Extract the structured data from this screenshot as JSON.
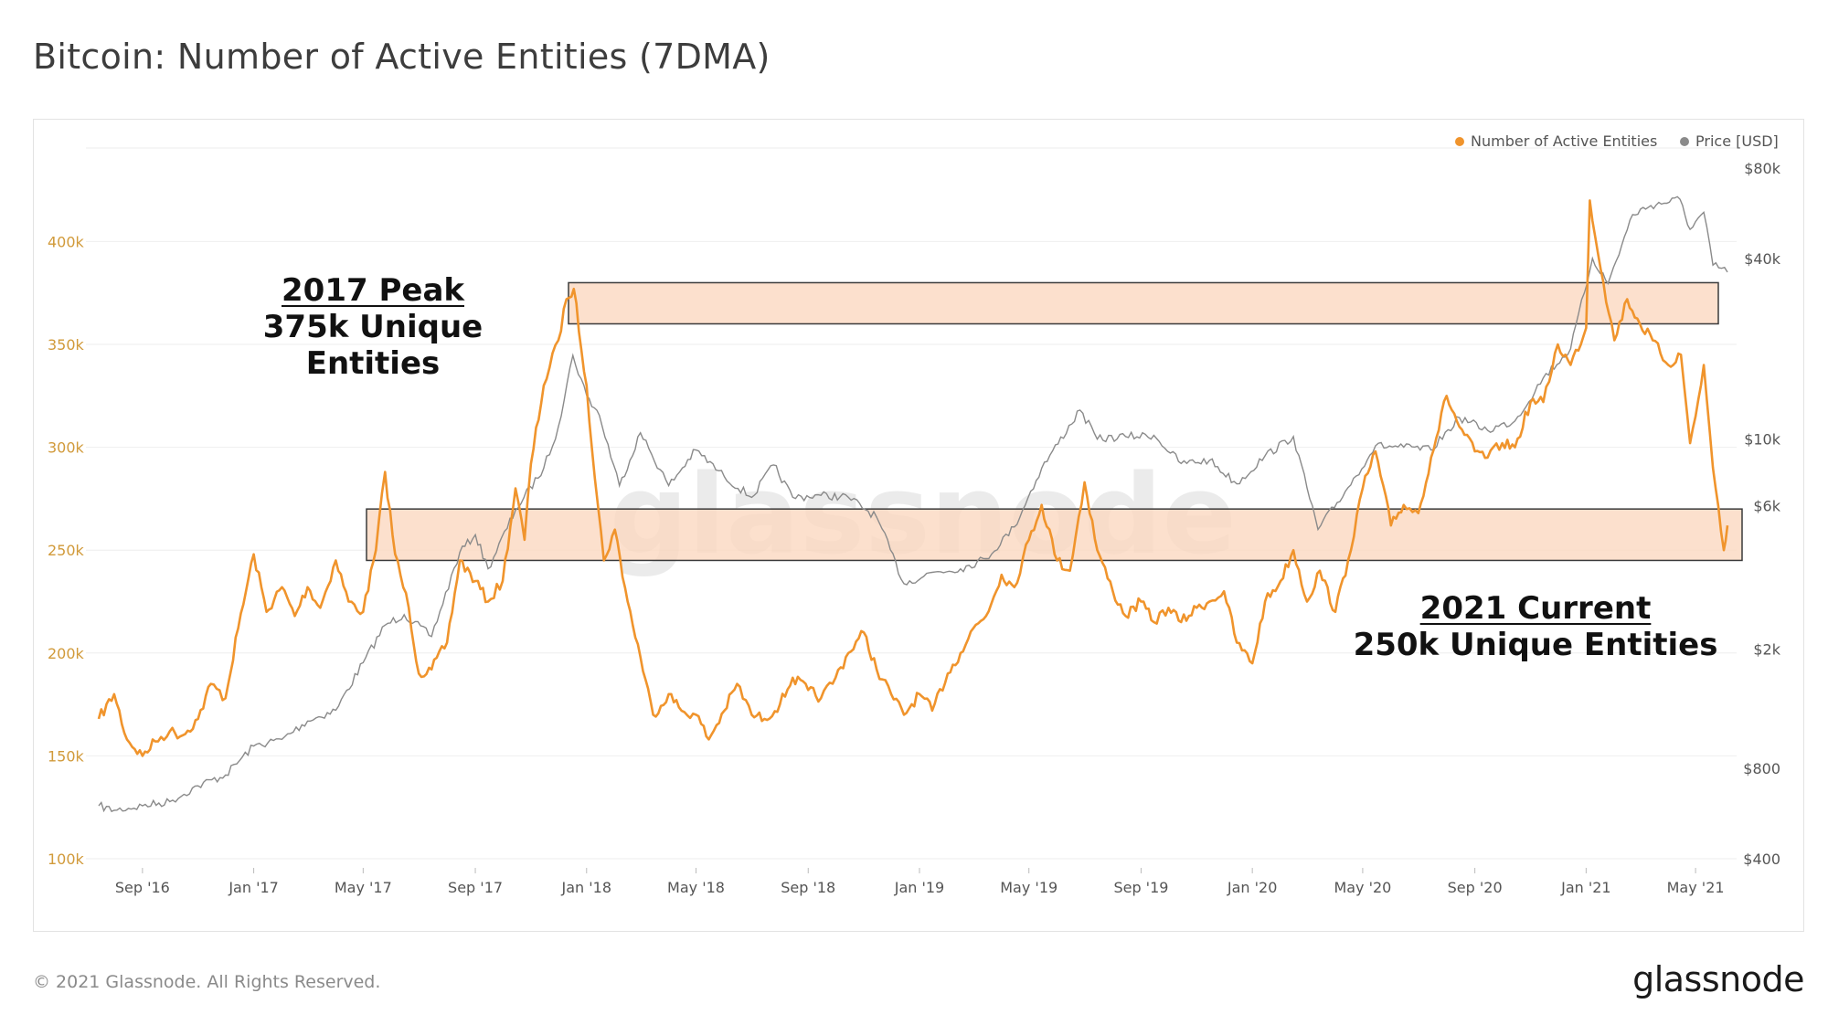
{
  "title": "Bitcoin: Number of Active Entities (7DMA)",
  "footer": {
    "copyright": "© 2021 Glassnode. All Rights Reserved.",
    "logo_text": "glassnode"
  },
  "watermark": "glassnode",
  "colors": {
    "entities": "#f0942c",
    "price": "#8a8a8a",
    "band_fill": "#fbd8c0",
    "band_stroke": "#3a3a3a",
    "grid": "#eeeeee",
    "left_axis_text": "#d19a3a"
  },
  "annotations": {
    "peak_2017_line1": "2017 Peak",
    "peak_2017_line2": "375k Unique Entities",
    "current_2021_line1": "2021 Current",
    "current_2021_line2": "250k Unique Entities"
  },
  "chart_data": {
    "type": "line",
    "title": "Bitcoin: Number of Active Entities (7DMA)",
    "legend": {
      "placement": "top-right",
      "entries": [
        "Number of Active Entities",
        "Price [USD]"
      ]
    },
    "grid": true,
    "x_ticks": [
      "Sep '16",
      "Jan '17",
      "May '17",
      "Sep '17",
      "Jan '18",
      "May '18",
      "Sep '18",
      "Jan '19",
      "May '19",
      "Sep '19",
      "Jan '20",
      "May '20",
      "Sep '20",
      "Jan '21",
      "May '21"
    ],
    "x_range": [
      "2016-07",
      "2021-06"
    ],
    "y_left": {
      "ticks": [
        "100k",
        "150k",
        "200k",
        "250k",
        "300k",
        "350k",
        "400k"
      ],
      "ylim": [
        100000,
        440000
      ]
    },
    "y_right": {
      "scale": "log",
      "ticks": [
        "$400",
        "$800",
        "$2k",
        "$6k",
        "$10k",
        "$40k",
        "$80k"
      ],
      "tick_values": [
        400,
        800,
        2000,
        6000,
        10000,
        40000,
        80000
      ]
    },
    "bands": [
      {
        "name": "2017 peak band",
        "y_range": [
          360000,
          380000
        ],
        "x_range": [
          "2017-12",
          "2021-05"
        ]
      },
      {
        "name": "2021 current band",
        "y_range": [
          245000,
          270000
        ],
        "x_range": [
          "2017-05",
          "2021-06"
        ]
      }
    ],
    "series": [
      {
        "name": "Number of Active Entities",
        "axis": "left",
        "points": [
          [
            "2016-07-15",
            168000
          ],
          [
            "2016-08-01",
            180000
          ],
          [
            "2016-08-15",
            158000
          ],
          [
            "2016-09-01",
            150000
          ],
          [
            "2016-09-15",
            157000
          ],
          [
            "2016-10-01",
            162000
          ],
          [
            "2016-10-15",
            160000
          ],
          [
            "2016-11-01",
            168000
          ],
          [
            "2016-11-15",
            185000
          ],
          [
            "2016-12-01",
            178000
          ],
          [
            "2016-12-15",
            212000
          ],
          [
            "2017-01-01",
            248000
          ],
          [
            "2017-01-15",
            220000
          ],
          [
            "2017-02-01",
            232000
          ],
          [
            "2017-02-15",
            218000
          ],
          [
            "2017-03-01",
            232000
          ],
          [
            "2017-03-15",
            222000
          ],
          [
            "2017-04-01",
            245000
          ],
          [
            "2017-04-15",
            225000
          ],
          [
            "2017-05-01",
            220000
          ],
          [
            "2017-05-15",
            250000
          ],
          [
            "2017-05-25",
            288000
          ],
          [
            "2017-06-05",
            248000
          ],
          [
            "2017-06-20",
            222000
          ],
          [
            "2017-07-01",
            190000
          ],
          [
            "2017-07-15",
            192000
          ],
          [
            "2017-08-01",
            205000
          ],
          [
            "2017-08-15",
            245000
          ],
          [
            "2017-09-01",
            235000
          ],
          [
            "2017-09-15",
            225000
          ],
          [
            "2017-10-01",
            235000
          ],
          [
            "2017-10-15",
            280000
          ],
          [
            "2017-10-25",
            255000
          ],
          [
            "2017-11-01",
            292000
          ],
          [
            "2017-11-15",
            330000
          ],
          [
            "2017-12-01",
            352000
          ],
          [
            "2017-12-10",
            372000
          ],
          [
            "2017-12-18",
            377000
          ],
          [
            "2018-01-01",
            330000
          ],
          [
            "2018-01-10",
            285000
          ],
          [
            "2018-01-20",
            245000
          ],
          [
            "2018-02-01",
            260000
          ],
          [
            "2018-02-15",
            225000
          ],
          [
            "2018-03-01",
            198000
          ],
          [
            "2018-03-15",
            170000
          ],
          [
            "2018-04-01",
            180000
          ],
          [
            "2018-04-15",
            172000
          ],
          [
            "2018-05-01",
            170000
          ],
          [
            "2018-05-15",
            158000
          ],
          [
            "2018-06-01",
            172000
          ],
          [
            "2018-06-15",
            185000
          ],
          [
            "2018-07-01",
            170000
          ],
          [
            "2018-07-15",
            168000
          ],
          [
            "2018-08-01",
            175000
          ],
          [
            "2018-08-15",
            188000
          ],
          [
            "2018-09-01",
            182000
          ],
          [
            "2018-09-15",
            178000
          ],
          [
            "2018-10-01",
            188000
          ],
          [
            "2018-10-15",
            200000
          ],
          [
            "2018-11-01",
            210000
          ],
          [
            "2018-11-15",
            192000
          ],
          [
            "2018-12-01",
            180000
          ],
          [
            "2018-12-15",
            170000
          ],
          [
            "2019-01-01",
            180000
          ],
          [
            "2019-01-15",
            172000
          ],
          [
            "2019-02-01",
            190000
          ],
          [
            "2019-02-15",
            200000
          ],
          [
            "2019-03-01",
            212000
          ],
          [
            "2019-03-15",
            218000
          ],
          [
            "2019-04-01",
            238000
          ],
          [
            "2019-04-15",
            232000
          ],
          [
            "2019-05-01",
            255000
          ],
          [
            "2019-05-15",
            272000
          ],
          [
            "2019-06-01",
            245000
          ],
          [
            "2019-06-15",
            240000
          ],
          [
            "2019-07-01",
            283000
          ],
          [
            "2019-07-15",
            250000
          ],
          [
            "2019-08-01",
            230000
          ],
          [
            "2019-08-15",
            218000
          ],
          [
            "2019-09-01",
            225000
          ],
          [
            "2019-09-15",
            215000
          ],
          [
            "2019-10-01",
            222000
          ],
          [
            "2019-10-15",
            215000
          ],
          [
            "2019-11-01",
            222000
          ],
          [
            "2019-11-15",
            225000
          ],
          [
            "2019-12-01",
            230000
          ],
          [
            "2019-12-15",
            205000
          ],
          [
            "2020-01-01",
            195000
          ],
          [
            "2020-01-15",
            225000
          ],
          [
            "2020-02-01",
            235000
          ],
          [
            "2020-02-15",
            250000
          ],
          [
            "2020-03-01",
            225000
          ],
          [
            "2020-03-15",
            240000
          ],
          [
            "2020-04-01",
            220000
          ],
          [
            "2020-04-15",
            245000
          ],
          [
            "2020-05-01",
            280000
          ],
          [
            "2020-05-15",
            298000
          ],
          [
            "2020-06-01",
            262000
          ],
          [
            "2020-06-15",
            272000
          ],
          [
            "2020-07-01",
            268000
          ],
          [
            "2020-07-15",
            295000
          ],
          [
            "2020-08-01",
            325000
          ],
          [
            "2020-08-15",
            310000
          ],
          [
            "2020-09-01",
            298000
          ],
          [
            "2020-09-15",
            295000
          ],
          [
            "2020-10-01",
            302000
          ],
          [
            "2020-10-15",
            300000
          ],
          [
            "2020-11-01",
            322000
          ],
          [
            "2020-11-15",
            322000
          ],
          [
            "2020-12-01",
            350000
          ],
          [
            "2020-12-15",
            340000
          ],
          [
            "2021-01-01",
            358000
          ],
          [
            "2021-01-05",
            420000
          ],
          [
            "2021-01-20",
            380000
          ],
          [
            "2021-02-01",
            352000
          ],
          [
            "2021-02-15",
            372000
          ],
          [
            "2021-03-01",
            360000
          ],
          [
            "2021-03-15",
            352000
          ],
          [
            "2021-04-01",
            340000
          ],
          [
            "2021-04-15",
            345000
          ],
          [
            "2021-04-25",
            302000
          ],
          [
            "2021-05-01",
            315000
          ],
          [
            "2021-05-10",
            340000
          ],
          [
            "2021-05-20",
            290000
          ],
          [
            "2021-06-01",
            250000
          ],
          [
            "2021-06-05",
            262000
          ]
        ]
      },
      {
        "name": "Price [USD]",
        "axis": "right",
        "points": [
          [
            "2016-07-15",
            600
          ],
          [
            "2016-08-01",
            580
          ],
          [
            "2016-09-01",
            600
          ],
          [
            "2016-10-01",
            620
          ],
          [
            "2016-11-01",
            700
          ],
          [
            "2016-12-01",
            760
          ],
          [
            "2017-01-01",
            950
          ],
          [
            "2017-02-01",
            1000
          ],
          [
            "2017-03-01",
            1150
          ],
          [
            "2017-04-01",
            1250
          ],
          [
            "2017-05-01",
            1800
          ],
          [
            "2017-05-25",
            2400
          ],
          [
            "2017-06-15",
            2600
          ],
          [
            "2017-07-15",
            2200
          ],
          [
            "2017-08-15",
            4200
          ],
          [
            "2017-09-01",
            4800
          ],
          [
            "2017-09-15",
            3700
          ],
          [
            "2017-10-15",
            5800
          ],
          [
            "2017-11-15",
            8000
          ],
          [
            "2017-12-01",
            11000
          ],
          [
            "2017-12-17",
            19000
          ],
          [
            "2018-01-01",
            14000
          ],
          [
            "2018-01-15",
            12000
          ],
          [
            "2018-02-06",
            7000
          ],
          [
            "2018-03-01",
            10500
          ],
          [
            "2018-04-01",
            7000
          ],
          [
            "2018-05-01",
            9200
          ],
          [
            "2018-06-01",
            7500
          ],
          [
            "2018-07-01",
            6400
          ],
          [
            "2018-07-25",
            8200
          ],
          [
            "2018-08-15",
            6400
          ],
          [
            "2018-09-15",
            6500
          ],
          [
            "2018-10-15",
            6400
          ],
          [
            "2018-11-15",
            5500
          ],
          [
            "2018-12-15",
            3300
          ],
          [
            "2019-01-15",
            3600
          ],
          [
            "2019-02-15",
            3700
          ],
          [
            "2019-03-15",
            4000
          ],
          [
            "2019-04-15",
            5100
          ],
          [
            "2019-05-15",
            8000
          ],
          [
            "2019-06-26",
            12500
          ],
          [
            "2019-07-15",
            10000
          ],
          [
            "2019-08-15",
            10200
          ],
          [
            "2019-09-15",
            10300
          ],
          [
            "2019-10-15",
            8300
          ],
          [
            "2019-11-15",
            8500
          ],
          [
            "2019-12-15",
            7100
          ],
          [
            "2020-01-15",
            8800
          ],
          [
            "2020-02-15",
            10200
          ],
          [
            "2020-03-13",
            5000
          ],
          [
            "2020-04-15",
            6900
          ],
          [
            "2020-05-15",
            9500
          ],
          [
            "2020-06-15",
            9400
          ],
          [
            "2020-07-15",
            9200
          ],
          [
            "2020-08-15",
            11800
          ],
          [
            "2020-09-15",
            10700
          ],
          [
            "2020-10-15",
            11500
          ],
          [
            "2020-11-15",
            16000
          ],
          [
            "2020-12-15",
            20000
          ],
          [
            "2021-01-08",
            40000
          ],
          [
            "2021-01-25",
            33000
          ],
          [
            "2021-02-21",
            56000
          ],
          [
            "2021-03-13",
            60000
          ],
          [
            "2021-04-14",
            63000
          ],
          [
            "2021-04-25",
            50000
          ],
          [
            "2021-05-10",
            57000
          ],
          [
            "2021-05-20",
            38000
          ],
          [
            "2021-06-05",
            36000
          ]
        ]
      }
    ]
  }
}
